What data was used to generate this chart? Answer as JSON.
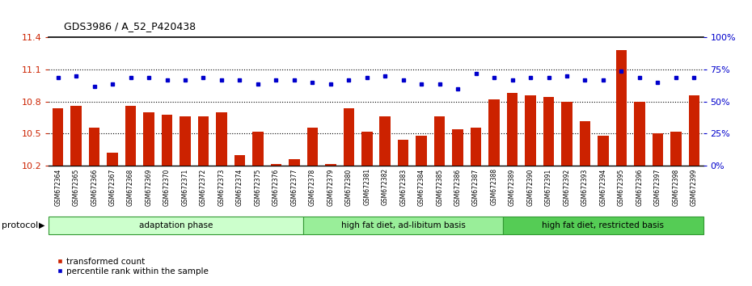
{
  "title": "GDS3986 / A_52_P420438",
  "samples": [
    "GSM672364",
    "GSM672365",
    "GSM672366",
    "GSM672367",
    "GSM672368",
    "GSM672369",
    "GSM672370",
    "GSM672371",
    "GSM672372",
    "GSM672373",
    "GSM672374",
    "GSM672375",
    "GSM672376",
    "GSM672377",
    "GSM672378",
    "GSM672379",
    "GSM672380",
    "GSM672381",
    "GSM672382",
    "GSM672383",
    "GSM672384",
    "GSM672385",
    "GSM672386",
    "GSM672387",
    "GSM672388",
    "GSM672389",
    "GSM672390",
    "GSM672391",
    "GSM672392",
    "GSM672393",
    "GSM672394",
    "GSM672395",
    "GSM672396",
    "GSM672397",
    "GSM672398",
    "GSM672399"
  ],
  "bar_values": [
    10.74,
    10.76,
    10.56,
    10.32,
    10.76,
    10.7,
    10.68,
    10.66,
    10.66,
    10.7,
    10.3,
    10.52,
    10.22,
    10.26,
    10.56,
    10.22,
    10.74,
    10.52,
    10.66,
    10.44,
    10.48,
    10.66,
    10.54,
    10.56,
    10.82,
    10.88,
    10.86,
    10.84,
    10.8,
    10.62,
    10.48,
    11.28,
    10.8,
    10.5,
    10.52,
    10.86
  ],
  "dot_values": [
    11.02,
    11.04,
    10.94,
    10.96,
    11.02,
    11.02,
    11.0,
    11.0,
    11.02,
    11.0,
    11.0,
    10.96,
    11.0,
    11.0,
    10.98,
    10.96,
    11.0,
    11.02,
    11.04,
    11.0,
    10.96,
    10.96,
    10.92,
    11.06,
    11.02,
    11.0,
    11.02,
    11.02,
    11.04,
    11.0,
    11.0,
    11.08,
    11.02,
    10.98,
    11.02,
    11.02
  ],
  "ylim": [
    10.2,
    11.4
  ],
  "yticks": [
    10.2,
    10.5,
    10.8,
    11.1,
    11.4
  ],
  "right_yticks": [
    0,
    25,
    50,
    75,
    100
  ],
  "right_ylim": [
    0,
    100
  ],
  "dotted_lines": [
    10.5,
    10.8,
    11.1
  ],
  "bar_color": "#cc2200",
  "dot_color": "#0000cc",
  "groups": [
    {
      "label": "adaptation phase",
      "start": 0,
      "end": 14,
      "color": "#ccffcc"
    },
    {
      "label": "high fat diet, ad-libitum basis",
      "start": 14,
      "end": 25,
      "color": "#99ee99"
    },
    {
      "label": "high fat diet, restricted basis",
      "start": 25,
      "end": 36,
      "color": "#55cc55"
    }
  ],
  "legend_items": [
    {
      "label": "transformed count",
      "color": "#cc2200"
    },
    {
      "label": "percentile rank within the sample",
      "color": "#0000cc"
    }
  ],
  "tick_color_left": "#cc2200",
  "tick_color_right": "#0000cc",
  "protocol_label": "protocol"
}
